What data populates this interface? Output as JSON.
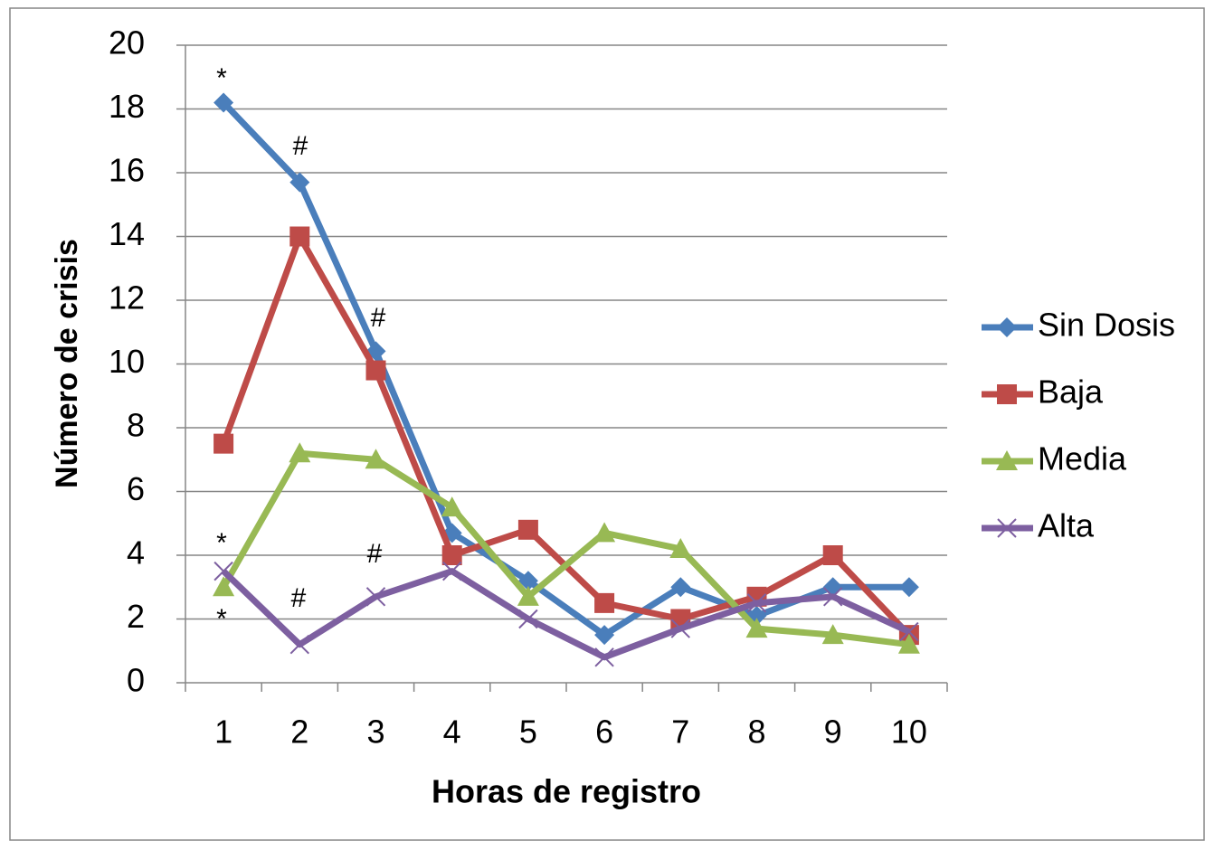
{
  "chart_data": {
    "type": "line",
    "xlabel": "Horas de registro",
    "ylabel": "Número de crisis",
    "categories": [
      "1",
      "2",
      "3",
      "4",
      "5",
      "6",
      "7",
      "8",
      "9",
      "10"
    ],
    "series": [
      {
        "name": "Sin Dosis",
        "color": "#4a7ebb",
        "marker": "diamond",
        "values": [
          18.2,
          15.7,
          10.4,
          4.7,
          3.2,
          1.5,
          3.0,
          2.1,
          3.0,
          3.0
        ]
      },
      {
        "name": "Baja",
        "color": "#be4b48",
        "marker": "square",
        "values": [
          7.5,
          14.0,
          9.8,
          4.0,
          4.8,
          2.5,
          2.0,
          2.7,
          4.0,
          1.5
        ]
      },
      {
        "name": "Media",
        "color": "#98b954",
        "marker": "triangle",
        "values": [
          3.0,
          7.2,
          7.0,
          5.5,
          2.7,
          4.7,
          4.2,
          1.7,
          1.5,
          1.2
        ]
      },
      {
        "name": "Alta",
        "color": "#7d5fa0",
        "marker": "x",
        "values": [
          3.5,
          1.2,
          2.7,
          3.5,
          2.0,
          0.8,
          1.7,
          2.5,
          2.7,
          1.6
        ]
      }
    ],
    "annotations": [
      "*",
      "#",
      "#",
      "*",
      "*",
      "#",
      "#"
    ],
    "ylim": [
      0,
      20
    ],
    "yticks": [
      0,
      2,
      4,
      6,
      8,
      10,
      12,
      14,
      16,
      18,
      20
    ],
    "grid": true,
    "legend": "right"
  }
}
